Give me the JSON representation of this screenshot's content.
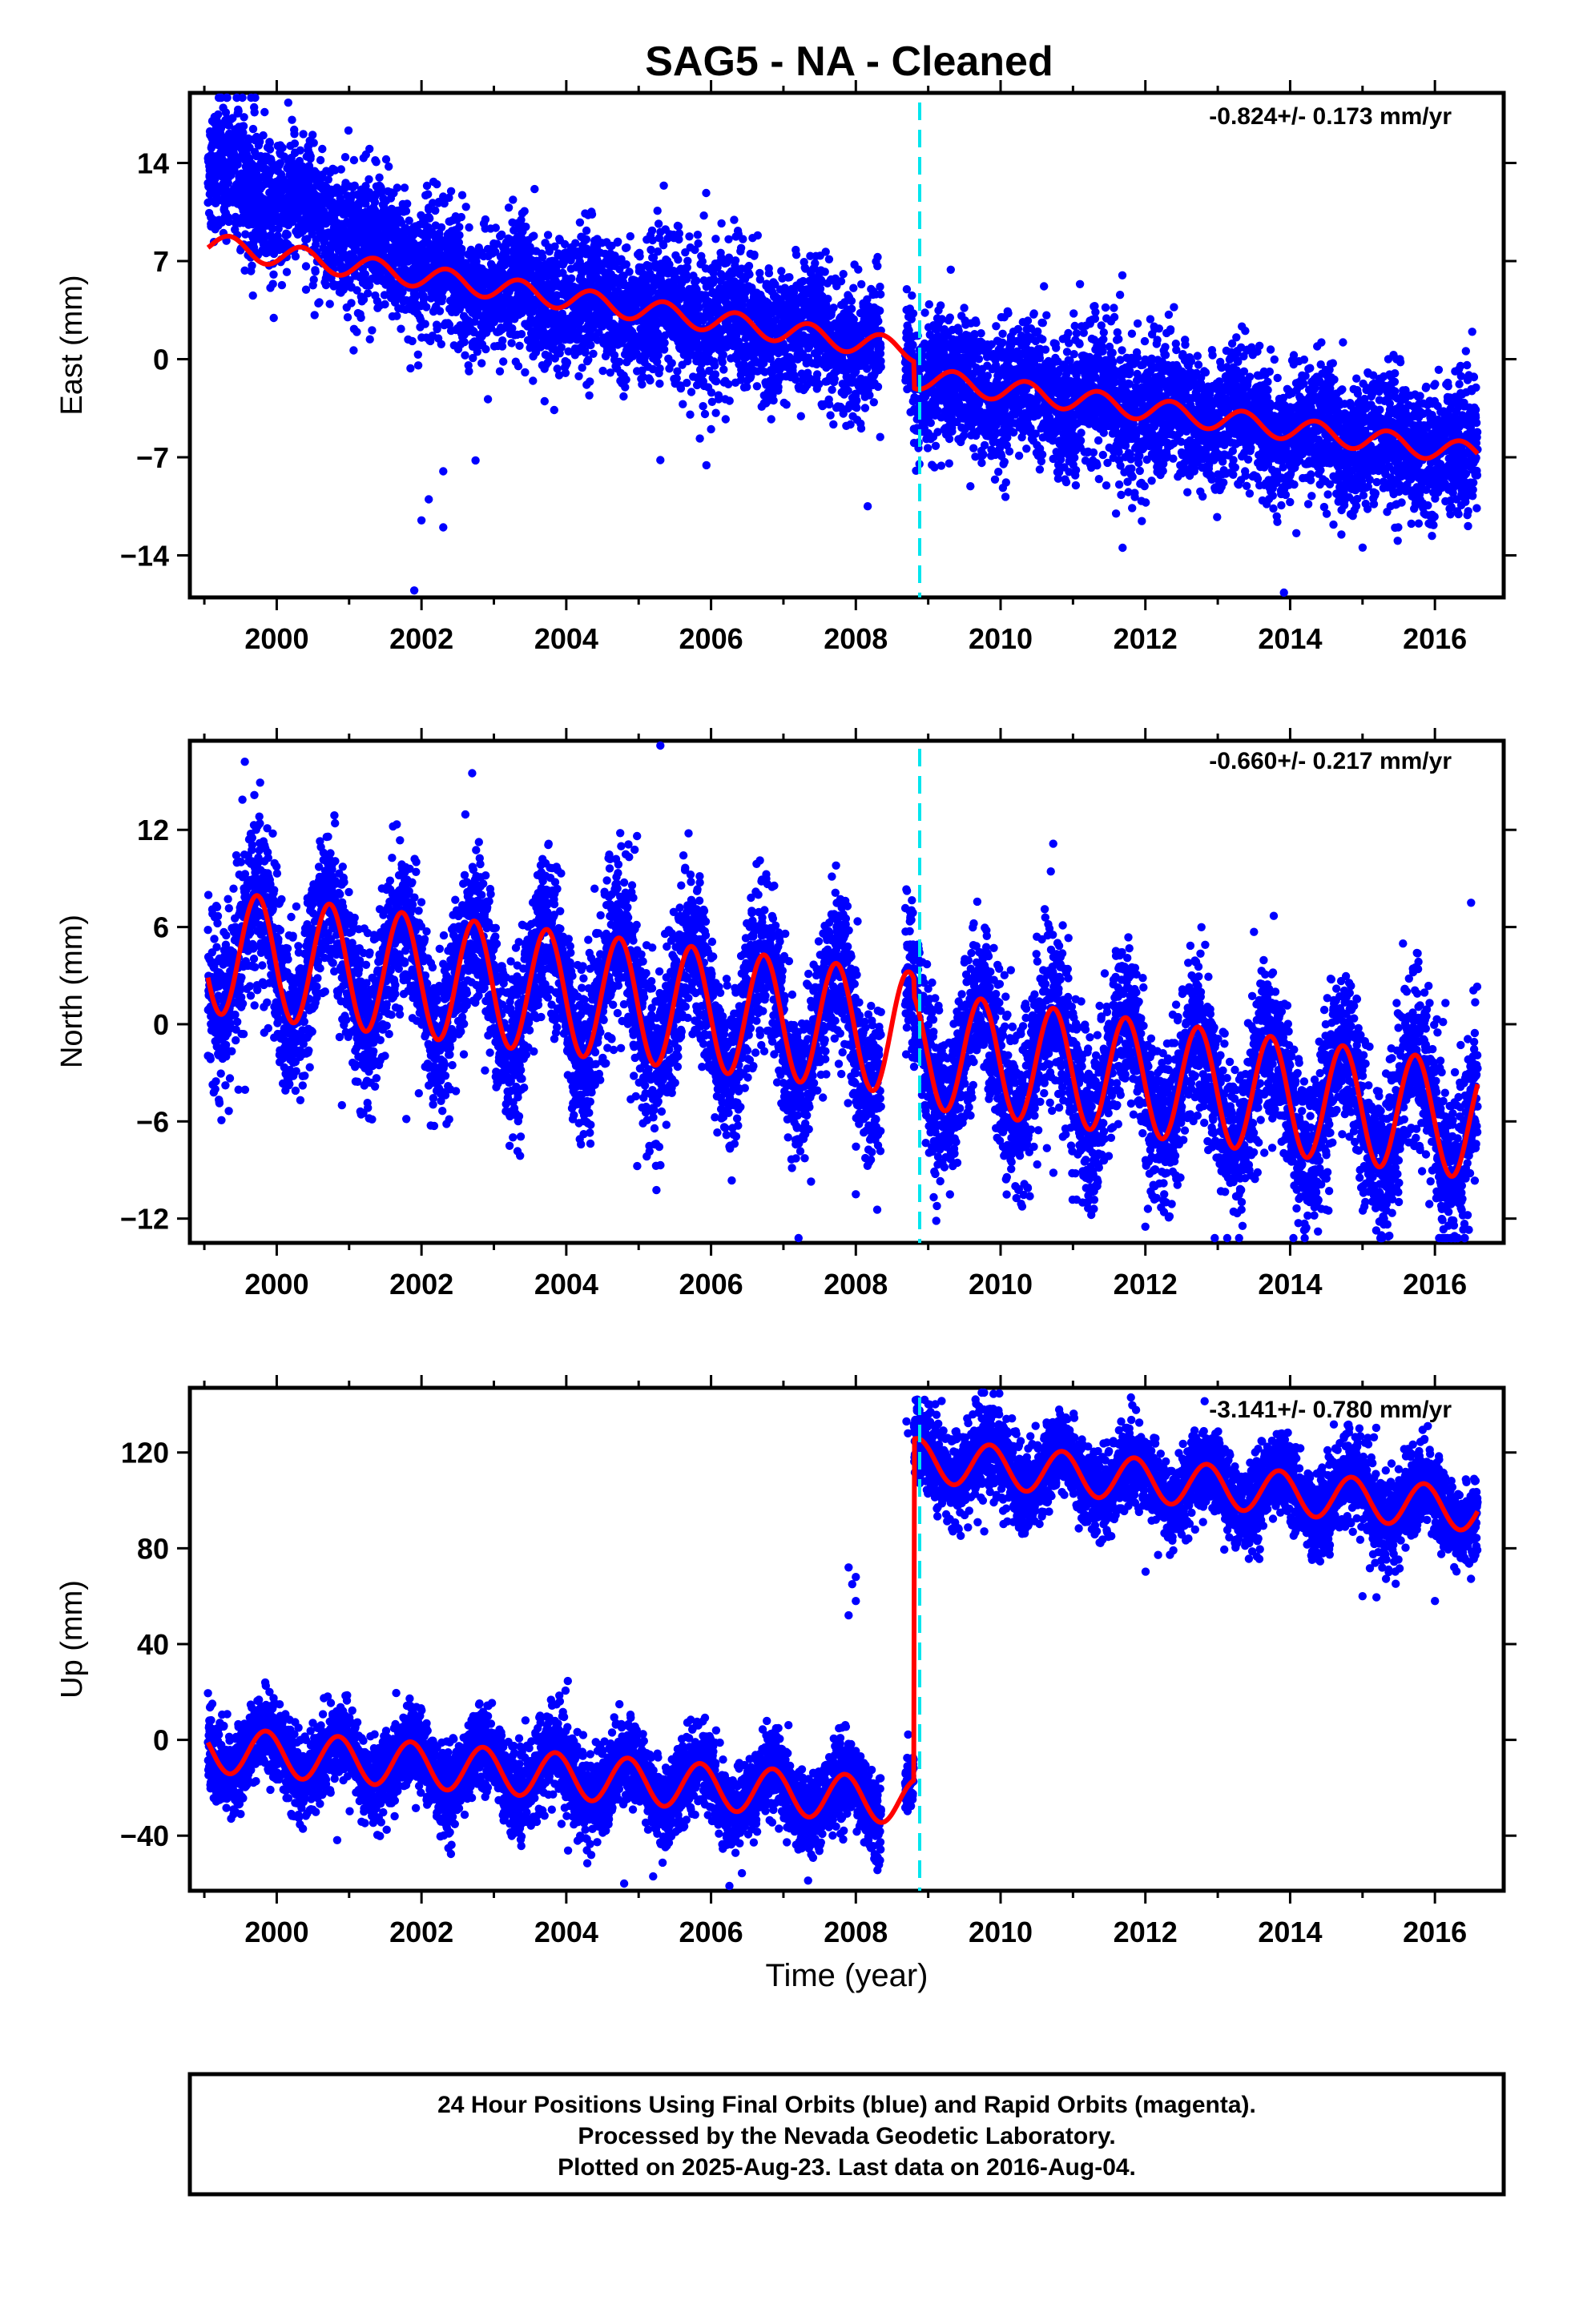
{
  "title": "SAG5  - NA - Cleaned",
  "colors": {
    "points": "#0000ff",
    "model": "#ff0000",
    "offset_line": "#00e5ee",
    "frame": "#000000"
  },
  "chart_data": [
    {
      "type": "scatter",
      "component": "east",
      "ylabel": "East (mm)",
      "xlabel": "",
      "xlim": [
        1998.8,
        2016.95
      ],
      "ylim": [
        -17,
        19
      ],
      "xticks": [
        2000,
        2002,
        2004,
        2006,
        2008,
        2010,
        2012,
        2014,
        2016
      ],
      "yticks": [
        14,
        7,
        0,
        -7,
        -14
      ],
      "ytick_labels": [
        "14",
        "7",
        "0",
        "−7",
        "−14"
      ],
      "rate_text": "-0.824+/- 0.173 mm/yr",
      "offset_epoch": 2008.8,
      "data_span": [
        1999.05,
        2016.59
      ],
      "model": {
        "segments": [
          {
            "t0": 1999.05,
            "t1": 2008.8,
            "y0": 8.2,
            "y1": 0.6,
            "amp": 0.8,
            "phase": 0.1
          },
          {
            "t0": 2008.8,
            "t1": 2016.59,
            "y0": -1.3,
            "y1": -6.8,
            "amp": 0.8,
            "phase": 0.1
          }
        ]
      },
      "scatter": {
        "spread": 2.2,
        "early_excess": {
          "until": 2002.5,
          "start_value": 5.5
        },
        "outliers": [
          [
            1999.2,
            19.0
          ],
          [
            1999.9,
            15.5
          ],
          [
            2001.9,
            -16.5
          ],
          [
            2002.1,
            -10.0
          ],
          [
            2002.3,
            -12.0
          ],
          [
            2002.3,
            -8.0
          ],
          [
            2002.0,
            -11.5
          ],
          [
            2005.3,
            -7.2
          ],
          [
            2006.0,
            -5.0
          ],
          [
            2010.6,
            5.2
          ],
          [
            2003.7,
            -3.0
          ],
          [
            2004.9,
            3.5
          ]
        ]
      }
    },
    {
      "type": "scatter",
      "component": "north",
      "ylabel": "North (mm)",
      "xlabel": "",
      "xlim": [
        1998.8,
        2016.95
      ],
      "ylim": [
        -13.5,
        17.5
      ],
      "xticks": [
        2000,
        2002,
        2004,
        2006,
        2008,
        2010,
        2012,
        2014,
        2016
      ],
      "yticks": [
        12,
        6,
        0,
        -6,
        -12
      ],
      "ytick_labels": [
        "12",
        "6",
        "0",
        "−6",
        "−12"
      ],
      "rate_text": "-0.660+/- 0.217 mm/yr",
      "offset_epoch": 2008.8,
      "data_span": [
        1999.05,
        2016.59
      ],
      "model": {
        "segments": [
          {
            "t0": 1999.05,
            "t1": 2008.8,
            "y0": 4.5,
            "y1": -0.6,
            "amp": 3.8,
            "phase": 0.48
          },
          {
            "t0": 2008.8,
            "t1": 2016.59,
            "y0": -1.5,
            "y1": -6.0,
            "amp": 3.6,
            "phase": 0.48
          }
        ]
      },
      "scatter": {
        "spread": 2.3,
        "outliers": [
          [
            2005.3,
            17.5
          ],
          [
            2008.0,
            -10.5
          ],
          [
            2012.0,
            -12.5
          ],
          [
            2000.9,
            -5.0
          ],
          [
            2013.5,
            5.7
          ],
          [
            2010.5,
            5.4
          ],
          [
            2016.5,
            7.5
          ],
          [
            2002.7,
            15.5
          ]
        ]
      }
    },
    {
      "type": "scatter",
      "component": "up",
      "ylabel": "Up (mm)",
      "xlabel": "Time (year)",
      "xlim": [
        1998.8,
        2016.95
      ],
      "ylim": [
        -63,
        147
      ],
      "xticks": [
        2000,
        2002,
        2004,
        2006,
        2008,
        2010,
        2012,
        2014,
        2016
      ],
      "yticks": [
        120,
        80,
        40,
        0,
        -40
      ],
      "ytick_labels": [
        "120",
        "80",
        "40",
        "0",
        "−40"
      ],
      "rate_text": "-3.141+/- 0.780 mm/yr",
      "offset_epoch": 2008.8,
      "data_span": [
        1999.05,
        2016.59
      ],
      "model": {
        "segments": [
          {
            "t0": 1999.05,
            "t1": 2008.8,
            "y0": -4.0,
            "y1": -26.0,
            "amp": 9.5,
            "phase": 0.6
          },
          {
            "t0": 2008.8,
            "t1": 2016.59,
            "y0": 117.0,
            "y1": 96.0,
            "amp": 9.0,
            "phase": 0.6
          }
        ]
      },
      "scatter": {
        "spread": 8.0,
        "outliers": [
          [
            2007.9,
            72.0
          ],
          [
            2007.95,
            65.0
          ],
          [
            2008.0,
            58.0
          ],
          [
            2007.9,
            52.0
          ],
          [
            2008.0,
            68.0
          ],
          [
            1999.9,
            20.0
          ],
          [
            2004.8,
            -60.0
          ],
          [
            2005.2,
            -57.0
          ],
          [
            2015.0,
            60.0
          ],
          [
            2011.8,
            143.0
          ],
          [
            2016.0,
            58.0
          ],
          [
            2008.7,
            133.0
          ],
          [
            2008.72,
            128.0
          ]
        ]
      }
    }
  ],
  "footer": {
    "line1": "24 Hour Positions Using Final Orbits (blue) and Rapid Orbits (magenta).",
    "line2": "Processed by the Nevada Geodetic Laboratory.",
    "line3": "Plotted on 2025-Aug-23. Last data on 2016-Aug-04."
  }
}
